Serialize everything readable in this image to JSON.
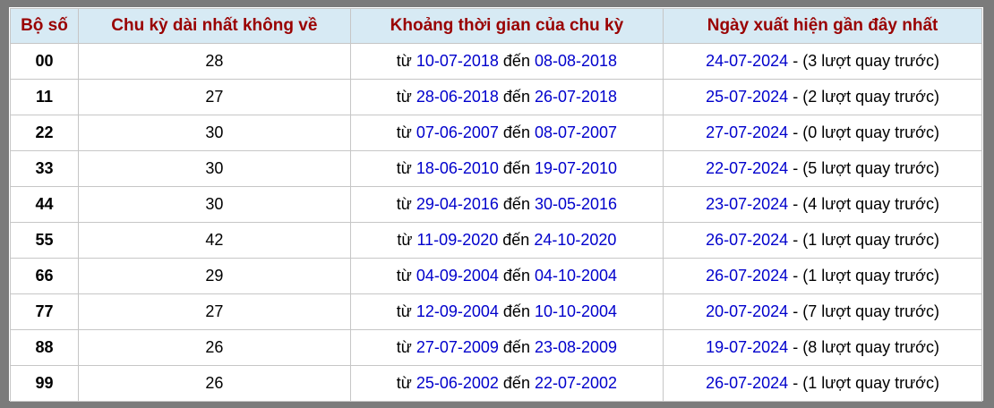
{
  "colors": {
    "frame": "#7b7b7b",
    "header_bg": "#d7eaf4",
    "header_text": "#990000",
    "link": "#0000cc",
    "cell_border": "#c6c6c6",
    "row_bg": "#ffffff"
  },
  "labels": {
    "from_word": "từ",
    "to_word": "đến",
    "separator": "-"
  },
  "table": {
    "columns": [
      "Bộ số",
      "Chu kỳ dài nhất không về",
      "Khoảng thời gian của chu kỳ",
      "Ngày xuất hiện gần đây nhất"
    ],
    "rows": [
      {
        "pair": "00",
        "cycle": "28",
        "from_date": "10-07-2018",
        "to_date": "08-08-2018",
        "recent_date": "24-07-2024",
        "ago": "(3 lượt quay trước)"
      },
      {
        "pair": "11",
        "cycle": "27",
        "from_date": "28-06-2018",
        "to_date": "26-07-2018",
        "recent_date": "25-07-2024",
        "ago": "(2 lượt quay trước)"
      },
      {
        "pair": "22",
        "cycle": "30",
        "from_date": "07-06-2007",
        "to_date": "08-07-2007",
        "recent_date": "27-07-2024",
        "ago": "(0 lượt quay trước)"
      },
      {
        "pair": "33",
        "cycle": "30",
        "from_date": "18-06-2010",
        "to_date": "19-07-2010",
        "recent_date": "22-07-2024",
        "ago": "(5 lượt quay trước)"
      },
      {
        "pair": "44",
        "cycle": "30",
        "from_date": "29-04-2016",
        "to_date": "30-05-2016",
        "recent_date": "23-07-2024",
        "ago": "(4 lượt quay trước)"
      },
      {
        "pair": "55",
        "cycle": "42",
        "from_date": "11-09-2020",
        "to_date": "24-10-2020",
        "recent_date": "26-07-2024",
        "ago": "(1 lượt quay trước)"
      },
      {
        "pair": "66",
        "cycle": "29",
        "from_date": "04-09-2004",
        "to_date": "04-10-2004",
        "recent_date": "26-07-2024",
        "ago": "(1 lượt quay trước)"
      },
      {
        "pair": "77",
        "cycle": "27",
        "from_date": "12-09-2004",
        "to_date": "10-10-2004",
        "recent_date": "20-07-2024",
        "ago": "(7 lượt quay trước)"
      },
      {
        "pair": "88",
        "cycle": "26",
        "from_date": "27-07-2009",
        "to_date": "23-08-2009",
        "recent_date": "19-07-2024",
        "ago": "(8 lượt quay trước)"
      },
      {
        "pair": "99",
        "cycle": "26",
        "from_date": "25-06-2002",
        "to_date": "22-07-2002",
        "recent_date": "26-07-2024",
        "ago": "(1 lượt quay trước)"
      }
    ]
  }
}
